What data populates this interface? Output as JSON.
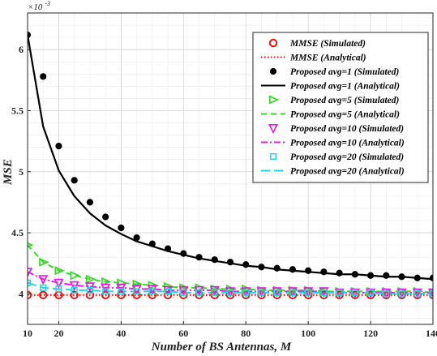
{
  "chart_data": {
    "type": "line",
    "xlabel": "Number of BS Antennas, M",
    "ylabel": "MSE",
    "exponent_base": "×10",
    "exponent_power": "-3",
    "xlim": [
      10,
      140
    ],
    "ylim": [
      3.75,
      6.3
    ],
    "scale_factor": 0.001,
    "xticks": [
      10,
      20,
      40,
      60,
      80,
      100,
      120,
      140
    ],
    "yticks": [
      4,
      4.5,
      5,
      5.5,
      6
    ],
    "ytick_labels": [
      "4",
      "4.5",
      "5",
      "5.5",
      "6"
    ],
    "grid": true,
    "legend_position": "top-right",
    "x_analytical": [
      10,
      15,
      20,
      25,
      30,
      35,
      40,
      45,
      50,
      55,
      60,
      65,
      70,
      75,
      80,
      85,
      90,
      95,
      100,
      105,
      110,
      115,
      120,
      125,
      130,
      135,
      140
    ],
    "x_simulated": [
      10,
      15,
      20,
      25,
      30,
      35,
      40,
      45,
      50,
      55,
      60,
      65,
      70,
      75,
      80,
      85,
      90,
      95,
      100,
      105,
      110,
      115,
      120,
      125,
      130,
      135,
      140
    ],
    "series": [
      {
        "name": "MMSE (Simulated)",
        "kind": "marker",
        "marker": "circle",
        "color": "#e8140c",
        "values": [
          3.99,
          3.99,
          3.99,
          3.99,
          3.99,
          3.99,
          3.99,
          3.99,
          3.99,
          3.99,
          3.99,
          3.99,
          3.99,
          3.99,
          3.99,
          3.99,
          3.99,
          3.99,
          3.99,
          3.99,
          3.99,
          3.99,
          3.99,
          3.99,
          3.99,
          3.99,
          3.99
        ]
      },
      {
        "name": "MMSE (Analytical)",
        "kind": "line",
        "dash": "dotted",
        "color": "#e8140c",
        "values": [
          3.99,
          3.99,
          3.99,
          3.99,
          3.99,
          3.99,
          3.99,
          3.99,
          3.99,
          3.99,
          3.99,
          3.99,
          3.99,
          3.99,
          3.99,
          3.99,
          3.99,
          3.99,
          3.99,
          3.99,
          3.99,
          3.99,
          3.99,
          3.99,
          3.99,
          3.99,
          3.99
        ]
      },
      {
        "name": "Proposed  avg=1 (Simulated)",
        "kind": "marker",
        "marker": "filled-circle",
        "color": "#000000",
        "values": [
          6.12,
          5.78,
          5.21,
          4.93,
          4.75,
          4.63,
          4.54,
          4.46,
          4.41,
          4.37,
          4.33,
          4.3,
          4.28,
          4.26,
          4.24,
          4.22,
          4.21,
          4.2,
          4.19,
          4.18,
          4.17,
          4.16,
          4.15,
          4.15,
          4.14,
          4.13,
          4.13
        ]
      },
      {
        "name": "Proposed avg=1 (Analytical)",
        "kind": "line",
        "dash": "solid",
        "color": "#000000",
        "values": [
          6.12,
          5.37,
          5.01,
          4.8,
          4.66,
          4.56,
          4.49,
          4.43,
          4.39,
          4.35,
          4.32,
          4.29,
          4.27,
          4.25,
          4.23,
          4.22,
          4.2,
          4.19,
          4.18,
          4.17,
          4.16,
          4.16,
          4.15,
          4.14,
          4.14,
          4.13,
          4.12
        ]
      },
      {
        "name": "Proposed avg=5 (Simulated)",
        "kind": "marker",
        "marker": "triangle-right",
        "color": "#38d62a",
        "values": [
          4.4,
          4.26,
          4.19,
          4.15,
          4.12,
          4.1,
          4.09,
          4.08,
          4.07,
          4.06,
          4.05,
          4.05,
          4.04,
          4.04,
          4.04,
          4.03,
          4.03,
          4.03,
          4.03,
          4.02,
          4.02,
          4.02,
          4.02,
          4.02,
          4.02,
          4.02,
          4.01
        ]
      },
      {
        "name": "Proposed avg=5 (Analytical)",
        "kind": "line",
        "dash": "dashed",
        "color": "#38d62a",
        "values": [
          4.4,
          4.26,
          4.19,
          4.15,
          4.12,
          4.1,
          4.09,
          4.08,
          4.07,
          4.06,
          4.05,
          4.05,
          4.04,
          4.04,
          4.04,
          4.03,
          4.03,
          4.03,
          4.03,
          4.02,
          4.02,
          4.02,
          4.02,
          4.02,
          4.02,
          4.02,
          4.01
        ]
      },
      {
        "name": "Proposed avg=10 (Simulated)",
        "kind": "marker",
        "marker": "triangle-down",
        "color": "#e11ee1",
        "values": [
          4.18,
          4.12,
          4.09,
          4.07,
          4.06,
          4.05,
          4.05,
          4.04,
          4.04,
          4.03,
          4.03,
          4.03,
          4.03,
          4.02,
          4.02,
          4.02,
          4.02,
          4.02,
          4.02,
          4.02,
          4.01,
          4.01,
          4.01,
          4.01,
          4.01,
          4.01,
          4.01
        ]
      },
      {
        "name": "Proposed avg=10 (Analytical)",
        "kind": "line",
        "dash": "dashdot",
        "color": "#e11ee1",
        "values": [
          4.18,
          4.12,
          4.09,
          4.07,
          4.06,
          4.05,
          4.05,
          4.04,
          4.04,
          4.03,
          4.03,
          4.03,
          4.03,
          4.02,
          4.02,
          4.02,
          4.02,
          4.02,
          4.02,
          4.02,
          4.01,
          4.01,
          4.01,
          4.01,
          4.01,
          4.01,
          4.01
        ]
      },
      {
        "name": "Proposed avg=20 (Simulated)",
        "kind": "marker",
        "marker": "square",
        "color": "#1ed8e8",
        "values": [
          4.09,
          4.05,
          4.04,
          4.03,
          4.03,
          4.02,
          4.02,
          4.02,
          4.02,
          4.02,
          4.01,
          4.01,
          4.01,
          4.01,
          4.01,
          4.01,
          4.01,
          4.01,
          4.01,
          4.01,
          4.01,
          4.01,
          4.01,
          4.0,
          4.0,
          4.0,
          4.0
        ]
      },
      {
        "name": "Proposed avg=20 (Analytical)",
        "kind": "line",
        "dash": "longdash",
        "color": "#1ed8e8",
        "values": [
          4.09,
          4.05,
          4.04,
          4.03,
          4.03,
          4.02,
          4.02,
          4.02,
          4.02,
          4.02,
          4.01,
          4.01,
          4.01,
          4.01,
          4.01,
          4.01,
          4.01,
          4.01,
          4.01,
          4.01,
          4.01,
          4.01,
          4.01,
          4.0,
          4.0,
          4.0,
          4.0
        ]
      }
    ]
  }
}
